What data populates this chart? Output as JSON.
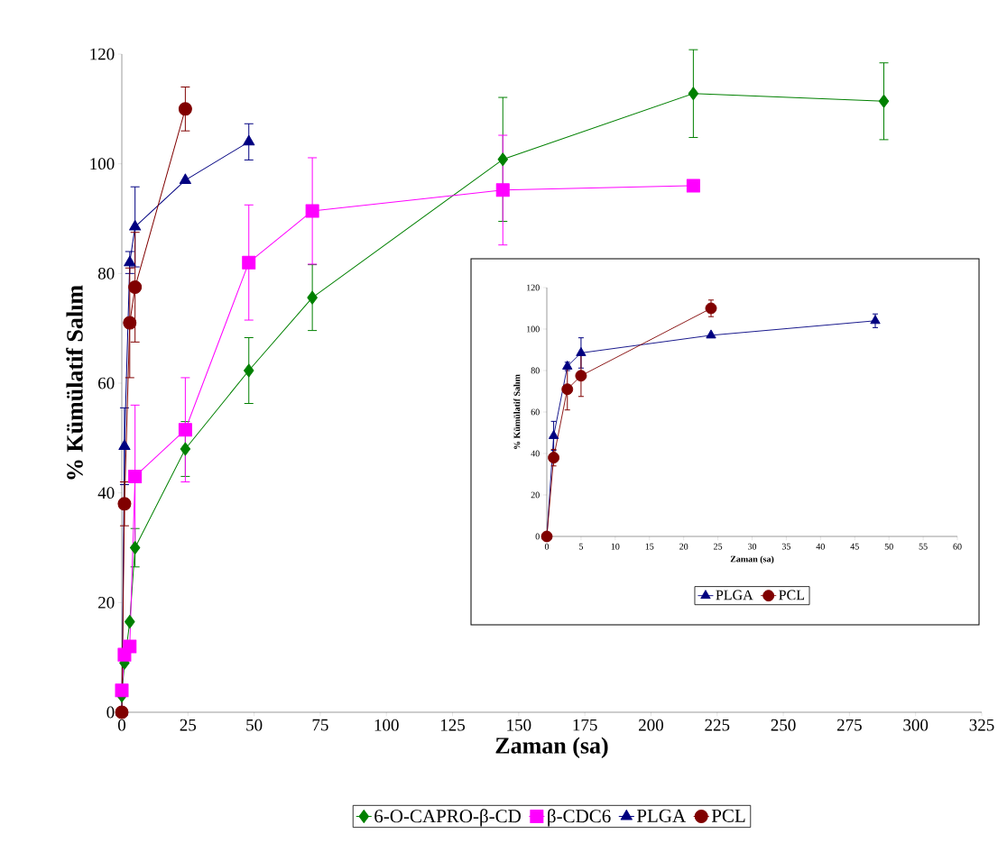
{
  "chart_data": [
    {
      "type": "line",
      "xlabel": "Zaman (sa)",
      "ylabel": "% Kümülatif Salım",
      "xlim": [
        0,
        325
      ],
      "xticks": [
        0,
        25,
        50,
        75,
        100,
        125,
        150,
        175,
        200,
        225,
        250,
        275,
        300,
        325
      ],
      "ylim": [
        0,
        120
      ],
      "yticks": [
        0,
        20,
        40,
        60,
        80,
        100,
        120
      ],
      "legend": "bottom",
      "series": [
        {
          "name": "6-O-CAPRO-β-CD",
          "color": "#008000",
          "marker": "diamond",
          "x": [
            0,
            1,
            3,
            5,
            24,
            48,
            72,
            144,
            216,
            288
          ],
          "values": [
            3,
            9,
            16.5,
            30,
            48,
            62.3,
            75.6,
            100.8,
            112.8,
            111.4
          ],
          "errors": [
            null,
            null,
            null,
            3.5,
            5,
            6,
            6,
            11.3,
            8,
            7
          ]
        },
        {
          "name": "β-CDC6",
          "color": "#ff00ff",
          "marker": "square",
          "x": [
            0,
            1,
            3,
            5,
            24,
            48,
            72,
            144,
            216
          ],
          "values": [
            4,
            10.5,
            12,
            43,
            51.5,
            82,
            91.4,
            95.2,
            96
          ],
          "errors": [
            null,
            null,
            null,
            13,
            9.5,
            10.5,
            9.7,
            10,
            null
          ]
        },
        {
          "name": "PLGA",
          "color": "#000080",
          "marker": "triangle",
          "x": [
            0,
            1,
            3,
            5,
            24,
            48
          ],
          "values": [
            0,
            48.5,
            82,
            88.5,
            97,
            104
          ],
          "errors": [
            null,
            7,
            2,
            7.3,
            null,
            3.3
          ]
        },
        {
          "name": "PCL",
          "color": "#800000",
          "marker": "circle",
          "x": [
            0,
            1,
            3,
            5,
            24
          ],
          "values": [
            0,
            38,
            71,
            77.5,
            110
          ],
          "errors": [
            null,
            4,
            10,
            10,
            4
          ]
        }
      ]
    },
    {
      "type": "line",
      "xlabel": "Zaman (sa)",
      "ylabel": "% Kümülatif Salım",
      "xlim": [
        0,
        60
      ],
      "xticks": [
        0,
        5,
        10,
        15,
        20,
        25,
        30,
        35,
        40,
        45,
        50,
        55,
        60
      ],
      "ylim": [
        0,
        120
      ],
      "yticks": [
        0,
        20,
        40,
        60,
        80,
        100,
        120
      ],
      "legend": "bottom",
      "series": [
        {
          "name": "PLGA",
          "color": "#000080",
          "marker": "triangle",
          "x": [
            0,
            1,
            3,
            5,
            24,
            48
          ],
          "values": [
            0,
            48.5,
            82,
            88.5,
            97,
            104
          ],
          "errors": [
            null,
            7,
            2,
            7.3,
            null,
            3.3
          ]
        },
        {
          "name": "PCL",
          "color": "#800000",
          "marker": "circle",
          "x": [
            0,
            1,
            3,
            5,
            24
          ],
          "values": [
            0,
            38,
            71,
            77.5,
            110
          ],
          "errors": [
            null,
            4,
            10,
            10,
            4
          ]
        }
      ]
    }
  ]
}
